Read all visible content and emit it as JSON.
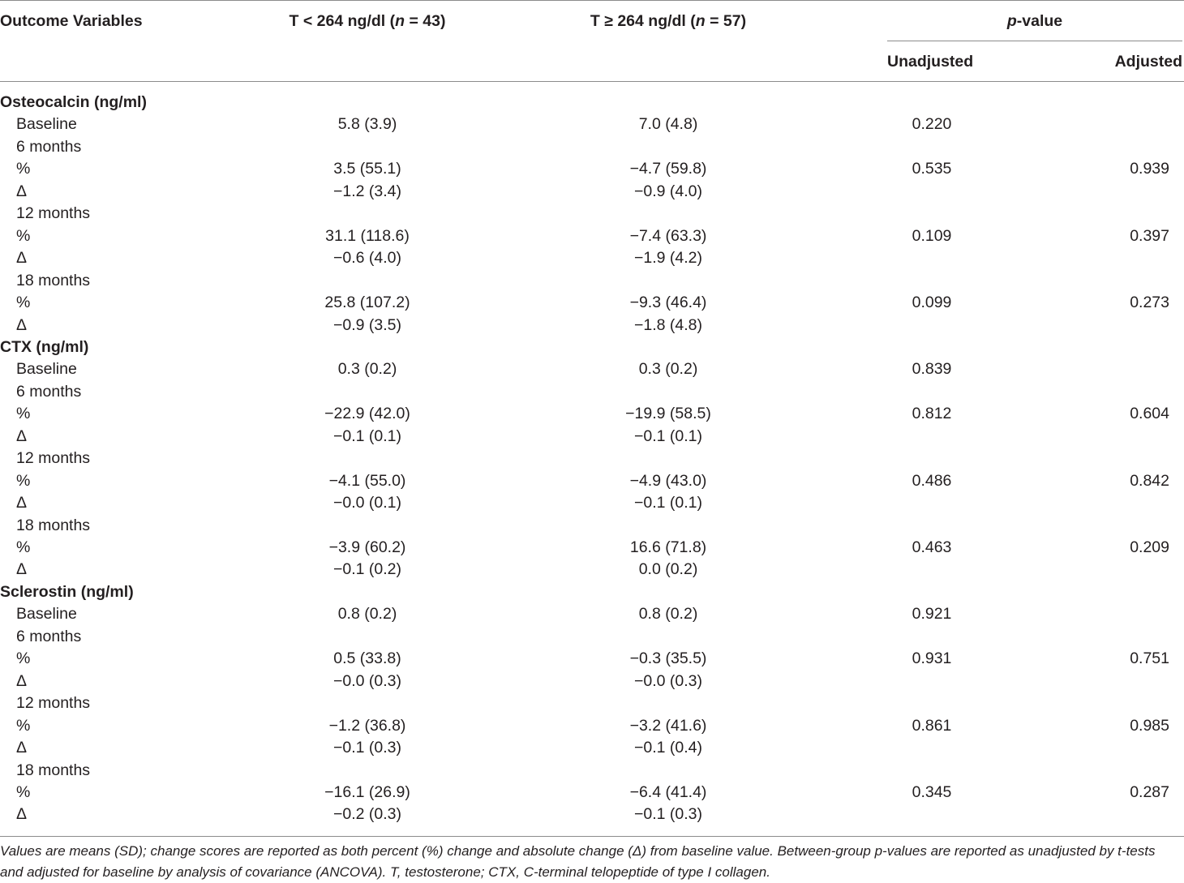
{
  "header": {
    "col_outcome": "Outcome Variables",
    "col_low_prefix": "T < 264 ng/dl (",
    "col_low_n": "n",
    "col_low_suffix": " = 43)",
    "col_high_prefix": "T ≥ 264 ng/dl (",
    "col_high_n": "n",
    "col_high_suffix": " = 57)",
    "pvalue_p": "p",
    "pvalue_rest": "-value",
    "col_unadjusted": "Unadjusted",
    "col_adjusted": "Adjusted"
  },
  "rows": [
    {
      "label": "Osteocalcin (ng/ml)",
      "type": "section",
      "low": "",
      "high": "",
      "unadj": "",
      "adj": ""
    },
    {
      "label": "Baseline",
      "type": "sub",
      "low": "5.8 (3.9)",
      "high": "7.0 (4.8)",
      "unadj": "0.220",
      "adj": ""
    },
    {
      "label": "6 months",
      "type": "sub",
      "low": "",
      "high": "",
      "unadj": "",
      "adj": ""
    },
    {
      "label": "%",
      "type": "sub",
      "low": "3.5 (55.1)",
      "high": "−4.7 (59.8)",
      "unadj": "0.535",
      "adj": "0.939"
    },
    {
      "label": "Δ",
      "type": "sub",
      "low": "−1.2 (3.4)",
      "high": "−0.9 (4.0)",
      "unadj": "",
      "adj": ""
    },
    {
      "label": "12 months",
      "type": "sub",
      "low": "",
      "high": "",
      "unadj": "",
      "adj": ""
    },
    {
      "label": "%",
      "type": "sub",
      "low": "31.1 (118.6)",
      "high": "−7.4 (63.3)",
      "unadj": "0.109",
      "adj": "0.397"
    },
    {
      "label": "Δ",
      "type": "sub",
      "low": "−0.6 (4.0)",
      "high": "−1.9 (4.2)",
      "unadj": "",
      "adj": ""
    },
    {
      "label": "18 months",
      "type": "sub",
      "low": "",
      "high": "",
      "unadj": "",
      "adj": ""
    },
    {
      "label": "%",
      "type": "sub",
      "low": "25.8 (107.2)",
      "high": "−9.3 (46.4)",
      "unadj": "0.099",
      "adj": "0.273"
    },
    {
      "label": "Δ",
      "type": "sub",
      "low": "−0.9 (3.5)",
      "high": "−1.8 (4.8)",
      "unadj": "",
      "adj": ""
    },
    {
      "label": "CTX (ng/ml)",
      "type": "section",
      "low": "",
      "high": "",
      "unadj": "",
      "adj": ""
    },
    {
      "label": "Baseline",
      "type": "sub",
      "low": "0.3 (0.2)",
      "high": "0.3 (0.2)",
      "unadj": "0.839",
      "adj": ""
    },
    {
      "label": "6 months",
      "type": "sub",
      "low": "",
      "high": "",
      "unadj": "",
      "adj": ""
    },
    {
      "label": "%",
      "type": "sub",
      "low": "−22.9 (42.0)",
      "high": "−19.9 (58.5)",
      "unadj": "0.812",
      "adj": "0.604"
    },
    {
      "label": "Δ",
      "type": "sub",
      "low": "−0.1 (0.1)",
      "high": "−0.1 (0.1)",
      "unadj": "",
      "adj": ""
    },
    {
      "label": "12 months",
      "type": "sub",
      "low": "",
      "high": "",
      "unadj": "",
      "adj": ""
    },
    {
      "label": "%",
      "type": "sub",
      "low": "−4.1 (55.0)",
      "high": "−4.9 (43.0)",
      "unadj": "0.486",
      "adj": "0.842"
    },
    {
      "label": "Δ",
      "type": "sub",
      "low": "−0.0 (0.1)",
      "high": "−0.1 (0.1)",
      "unadj": "",
      "adj": ""
    },
    {
      "label": "18 months",
      "type": "sub",
      "low": "",
      "high": "",
      "unadj": "",
      "adj": ""
    },
    {
      "label": "%",
      "type": "sub",
      "low": "−3.9 (60.2)",
      "high": "16.6 (71.8)",
      "unadj": "0.463",
      "adj": "0.209"
    },
    {
      "label": "Δ",
      "type": "sub",
      "low": "−0.1 (0.2)",
      "high": "0.0 (0.2)",
      "unadj": "",
      "adj": ""
    },
    {
      "label": "Sclerostin (ng/ml)",
      "type": "section",
      "low": "",
      "high": "",
      "unadj": "",
      "adj": ""
    },
    {
      "label": "Baseline",
      "type": "sub",
      "low": "0.8 (0.2)",
      "high": "0.8 (0.2)",
      "unadj": "0.921",
      "adj": ""
    },
    {
      "label": "6 months",
      "type": "sub",
      "low": "",
      "high": "",
      "unadj": "",
      "adj": ""
    },
    {
      "label": "%",
      "type": "sub",
      "low": "0.5 (33.8)",
      "high": "−0.3 (35.5)",
      "unadj": "0.931",
      "adj": "0.751"
    },
    {
      "label": "Δ",
      "type": "sub",
      "low": "−0.0 (0.3)",
      "high": "−0.0 (0.3)",
      "unadj": "",
      "adj": ""
    },
    {
      "label": "12 months",
      "type": "sub",
      "low": "",
      "high": "",
      "unadj": "",
      "adj": ""
    },
    {
      "label": "%",
      "type": "sub",
      "low": "−1.2 (36.8)",
      "high": "−3.2 (41.6)",
      "unadj": "0.861",
      "adj": "0.985"
    },
    {
      "label": "Δ",
      "type": "sub",
      "low": "−0.1 (0.3)",
      "high": "−0.1 (0.4)",
      "unadj": "",
      "adj": ""
    },
    {
      "label": "18 months",
      "type": "sub",
      "low": "",
      "high": "",
      "unadj": "",
      "adj": ""
    },
    {
      "label": "%",
      "type": "sub",
      "low": "−16.1 (26.9)",
      "high": "−6.4 (41.4)",
      "unadj": "0.345",
      "adj": "0.287"
    },
    {
      "label": "Δ",
      "type": "sub",
      "low": "−0.2 (0.3)",
      "high": "−0.1 (0.3)",
      "unadj": "",
      "adj": ""
    }
  ],
  "footnote": "Values are means (SD); change scores are reported as both percent (%) change and absolute change (Δ) from baseline value. Between-group p-values are reported as unadjusted by t-tests and adjusted for baseline by analysis of covariance (ANCOVA). T, testosterone; CTX, C-terminal telopeptide of type I collagen."
}
